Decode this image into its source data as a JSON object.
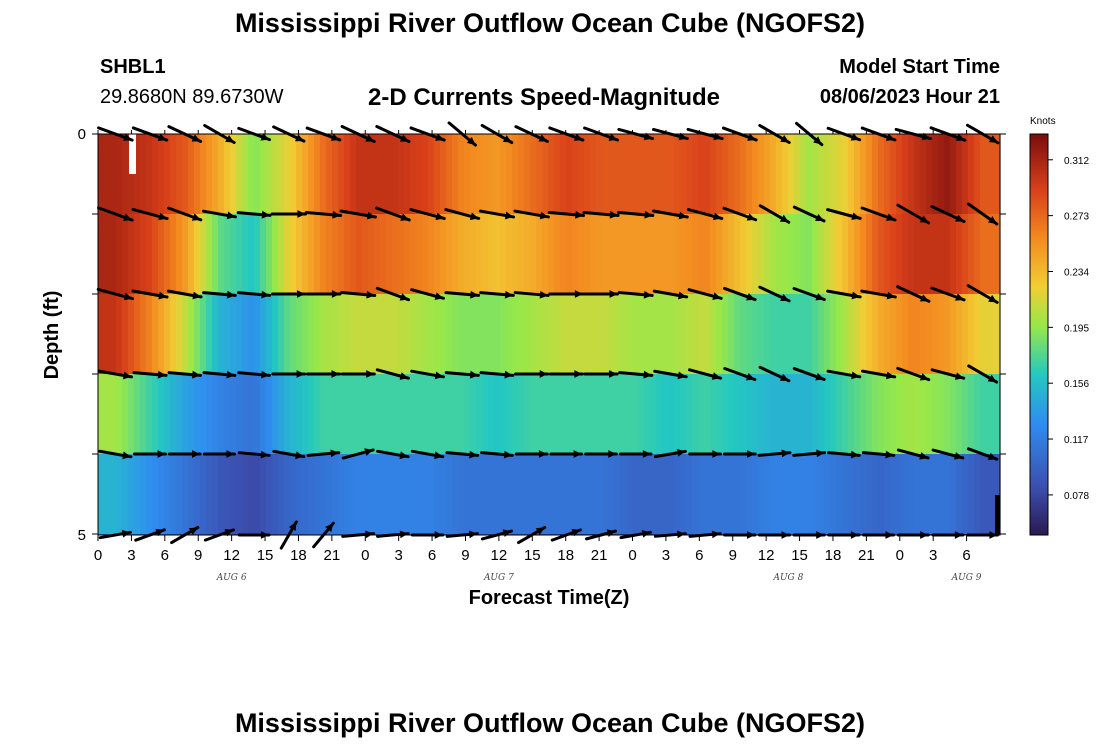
{
  "header": {
    "title": "Mississippi River Outflow Ocean Cube (NGOFS2)",
    "station": "SHBL1",
    "location": "29.8680N  89.6730W",
    "plot_title": "2-D Currents Speed-Magnitude",
    "model_start_label": "Model Start Time",
    "model_start_value": "08/06/2023 Hour 21"
  },
  "footer": {
    "title": "Mississippi River Outflow Ocean Cube (NGOFS2)"
  },
  "chart_data": {
    "type": "heatmap",
    "title": "2-D Currents Speed-Magnitude",
    "xlabel": "Forecast Time(Z)",
    "ylabel": "Depth (ft)",
    "x_range_hours": [
      0,
      81
    ],
    "y_range": [
      0,
      5
    ],
    "x_ticks": [
      "0",
      "3",
      "6",
      "9",
      "12",
      "15",
      "18",
      "21",
      "0",
      "3",
      "6",
      "9",
      "12",
      "15",
      "18",
      "21",
      "0",
      "3",
      "6",
      "9",
      "12",
      "15",
      "18",
      "21",
      "0",
      "3",
      "6"
    ],
    "y_ticks": [
      "0",
      "5"
    ],
    "date_labels": [
      {
        "label": "AUG 6",
        "hour": 12
      },
      {
        "label": "AUG 7",
        "hour": 36
      },
      {
        "label": "AUG 8",
        "hour": 62
      },
      {
        "label": "AUG 9",
        "hour": 78
      }
    ],
    "colorbar": {
      "title": "Knots",
      "range": [
        0.05,
        0.33
      ],
      "ticks": [
        "0.312",
        "0.273",
        "0.234",
        "0.195",
        "0.156",
        "0.117",
        "0.078"
      ],
      "tick_values": [
        0.312,
        0.273,
        0.234,
        0.195,
        0.156,
        0.117,
        0.078
      ]
    },
    "layers": [
      {
        "depth_band": "0-1",
        "speed_knots": [
          0.31,
          0.3,
          0.28,
          0.24,
          0.19,
          0.22,
          0.27,
          0.3,
          0.3,
          0.29,
          0.26,
          0.25,
          0.27,
          0.29,
          0.28,
          0.28,
          0.28,
          0.29,
          0.27,
          0.24,
          0.2,
          0.22,
          0.27,
          0.3,
          0.32,
          0.28
        ],
        "arrow_dir_deg": [
          -20,
          -20,
          -25,
          -30,
          -20,
          -25,
          -20,
          -25,
          -25,
          -20,
          -40,
          -30,
          -25,
          -20,
          -20,
          -15,
          -15,
          -15,
          -20,
          -30,
          -40,
          -20,
          -20,
          -15,
          -20,
          -30
        ]
      },
      {
        "depth_band": "1-2",
        "speed_knots": [
          0.31,
          0.29,
          0.25,
          0.18,
          0.16,
          0.22,
          0.26,
          0.28,
          0.27,
          0.26,
          0.24,
          0.23,
          0.24,
          0.26,
          0.25,
          0.25,
          0.25,
          0.26,
          0.23,
          0.2,
          0.19,
          0.23,
          0.28,
          0.3,
          0.3,
          0.27
        ],
        "arrow_dir_deg": [
          -20,
          -15,
          -20,
          -10,
          -5,
          0,
          -5,
          -10,
          -20,
          -15,
          -15,
          -10,
          -10,
          -5,
          -5,
          -5,
          -10,
          -15,
          -20,
          -30,
          -25,
          -15,
          -20,
          -30,
          -25,
          -35
        ]
      },
      {
        "depth_band": "2-3",
        "speed_knots": [
          0.3,
          0.26,
          0.21,
          0.15,
          0.13,
          0.18,
          0.2,
          0.21,
          0.21,
          0.2,
          0.19,
          0.19,
          0.2,
          0.21,
          0.21,
          0.2,
          0.2,
          0.21,
          0.18,
          0.17,
          0.17,
          0.2,
          0.24,
          0.26,
          0.25,
          0.22
        ],
        "arrow_dir_deg": [
          -15,
          -10,
          -10,
          -5,
          -5,
          0,
          0,
          -5,
          -20,
          -15,
          -5,
          -5,
          -5,
          0,
          0,
          -5,
          -10,
          -15,
          -20,
          -25,
          -20,
          -10,
          -10,
          -25,
          -20,
          -30
        ]
      },
      {
        "depth_band": "3-4",
        "speed_knots": [
          0.2,
          0.17,
          0.14,
          0.12,
          0.11,
          0.15,
          0.17,
          0.17,
          0.17,
          0.17,
          0.17,
          0.16,
          0.17,
          0.17,
          0.17,
          0.17,
          0.16,
          0.17,
          0.16,
          0.15,
          0.15,
          0.17,
          0.19,
          0.2,
          0.19,
          0.17
        ],
        "arrow_dir_deg": [
          -10,
          -5,
          -5,
          -5,
          -5,
          0,
          0,
          0,
          -15,
          -10,
          -5,
          -5,
          0,
          0,
          0,
          -5,
          -10,
          -15,
          -20,
          -25,
          -20,
          -10,
          -10,
          -20,
          -15,
          -30
        ]
      },
      {
        "depth_band": "4-5",
        "speed_knots": [
          0.15,
          0.13,
          0.11,
          0.09,
          0.08,
          0.1,
          0.11,
          0.12,
          0.12,
          0.12,
          0.11,
          0.11,
          0.11,
          0.11,
          0.11,
          0.1,
          0.1,
          0.11,
          0.11,
          0.12,
          0.12,
          0.11,
          0.1,
          0.11,
          0.11,
          0.09
        ],
        "arrow_dir_deg": [
          -10,
          0,
          0,
          0,
          -5,
          -10,
          5,
          15,
          -10,
          -10,
          -5,
          -5,
          0,
          0,
          0,
          0,
          10,
          0,
          0,
          5,
          5,
          -5,
          -5,
          -15,
          -15,
          -20
        ]
      },
      {
        "depth_band": "5",
        "speed_knots": [
          0.11,
          0.1,
          0.09,
          0.08,
          0.07,
          0.09,
          0.11,
          0.12,
          0.11,
          0.1,
          0.09,
          0.09,
          0.09,
          0.08,
          0.08,
          0.08,
          0.08,
          0.09,
          0.1,
          0.09,
          0.09,
          0.09,
          0.08,
          0.08,
          0.08,
          0.07
        ],
        "arrow_dir_deg": [
          10,
          20,
          30,
          20,
          0,
          60,
          50,
          5,
          5,
          0,
          5,
          15,
          30,
          20,
          15,
          10,
          5,
          5,
          0,
          0,
          0,
          0,
          0,
          0,
          0,
          0
        ]
      }
    ]
  }
}
